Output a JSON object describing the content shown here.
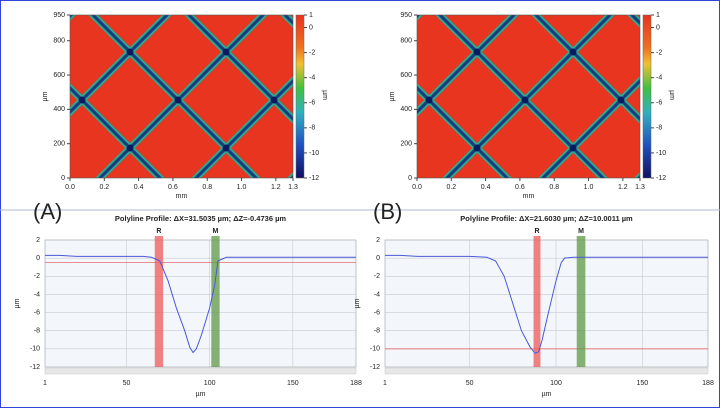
{
  "chart_data": [
    {
      "type": "heatmap",
      "x_label": "mm",
      "y_label": "µm",
      "xlim": [
        0,
        1.3
      ],
      "xticks": [
        {
          "value": 0,
          "label": "0.0"
        },
        0.2,
        0.4,
        0.6,
        0.8,
        {
          "value": 1,
          "label": "1.0"
        },
        1.2,
        1.3
      ],
      "ylim": [
        0,
        950
      ],
      "yticks": [
        0,
        200,
        400,
        600,
        800,
        950
      ],
      "colorbar": {
        "label": "µm",
        "lim": [
          -12,
          1
        ],
        "ticks": [
          1,
          0,
          -2,
          -4,
          -6,
          -8,
          -10,
          -12
        ]
      }
    },
    {
      "type": "heatmap",
      "x_label": "mm",
      "y_label": "µm",
      "xlim": [
        0,
        1.3
      ],
      "xticks": [
        {
          "value": 0,
          "label": "0.0"
        },
        0.2,
        0.4,
        0.6,
        0.8,
        {
          "value": 1,
          "label": "1.0"
        },
        1.2,
        1.3
      ],
      "ylim": [
        0,
        950
      ],
      "yticks": [
        0,
        200,
        400,
        600,
        800,
        950
      ],
      "colorbar": {
        "label": "µm",
        "lim": [
          -12,
          1
        ],
        "ticks": [
          1,
          0,
          -2,
          -4,
          -6,
          -8,
          -10,
          -12
        ]
      }
    },
    {
      "type": "line",
      "panel_label": "(A)",
      "title": "Polyline Profile: ΔX=31.5035 µm; ΔZ=-0.4736 µm",
      "x_label": "µm",
      "y_label": "µm",
      "xlim": [
        1,
        188
      ],
      "xticks": [
        1,
        50,
        100,
        150,
        188
      ],
      "ylim": [
        -12,
        2
      ],
      "yticks": [
        2,
        0,
        -2,
        -4,
        -6,
        -8,
        -10,
        -12
      ],
      "grid": true,
      "x": [
        1,
        10,
        20,
        30,
        40,
        50,
        60,
        65,
        70,
        75,
        80,
        85,
        88,
        90,
        92,
        95,
        100,
        103,
        105,
        110,
        120,
        130,
        140,
        150,
        160,
        170,
        180,
        188
      ],
      "series": [
        {
          "color": "#4a58d8",
          "values": [
            0.3,
            0.3,
            0.2,
            0.2,
            0.2,
            0.2,
            0.2,
            0.1,
            -0.3,
            -2.5,
            -5.5,
            -8,
            -9.8,
            -10.4,
            -10,
            -8.5,
            -5.5,
            -3,
            -0.3,
            0.1,
            0.1,
            0.1,
            0.1,
            0.1,
            0.1,
            0.1,
            0.1,
            0.1
          ]
        }
      ],
      "cursors": [
        {
          "label": "R",
          "x": [
            67,
            72
          ],
          "color": "#ee5a5a"
        },
        {
          "label": "M",
          "x": [
            101,
            106
          ],
          "color": "#5f9a45"
        }
      ],
      "reference_lines": [
        -0.5
      ],
      "reference_color": "#e05050"
    },
    {
      "type": "line",
      "panel_label": "(B)",
      "title": "Polyline Profile: ΔX=21.6030 µm; ΔZ=10.0011 µm",
      "x_label": "µm",
      "y_label": "µm",
      "xlim": [
        1,
        188
      ],
      "xticks": [
        1,
        50,
        100,
        150,
        188
      ],
      "ylim": [
        -12,
        2
      ],
      "yticks": [
        2,
        0,
        -2,
        -4,
        -6,
        -8,
        -10,
        -12
      ],
      "grid": true,
      "x": [
        1,
        10,
        20,
        30,
        40,
        50,
        60,
        65,
        70,
        75,
        80,
        85,
        88,
        90,
        92,
        95,
        100,
        103,
        105,
        110,
        120,
        130,
        140,
        150,
        160,
        170,
        180,
        188
      ],
      "series": [
        {
          "color": "#4a58d8",
          "values": [
            0.3,
            0.3,
            0.2,
            0.2,
            0.2,
            0.2,
            0.1,
            -0.3,
            -2,
            -5,
            -8,
            -9.8,
            -10.5,
            -10.3,
            -9,
            -6.5,
            -2.5,
            -0.5,
            0,
            0.1,
            0.1,
            0.1,
            0.1,
            0.1,
            0.1,
            0.1,
            0.1,
            0.1
          ]
        }
      ],
      "cursors": [
        {
          "label": "R",
          "x": [
            87,
            91
          ],
          "color": "#ee5a5a"
        },
        {
          "label": "M",
          "x": [
            112,
            117
          ],
          "color": "#5f9a45"
        }
      ],
      "reference_lines": [
        -10
      ],
      "reference_color": "#e05050"
    }
  ]
}
